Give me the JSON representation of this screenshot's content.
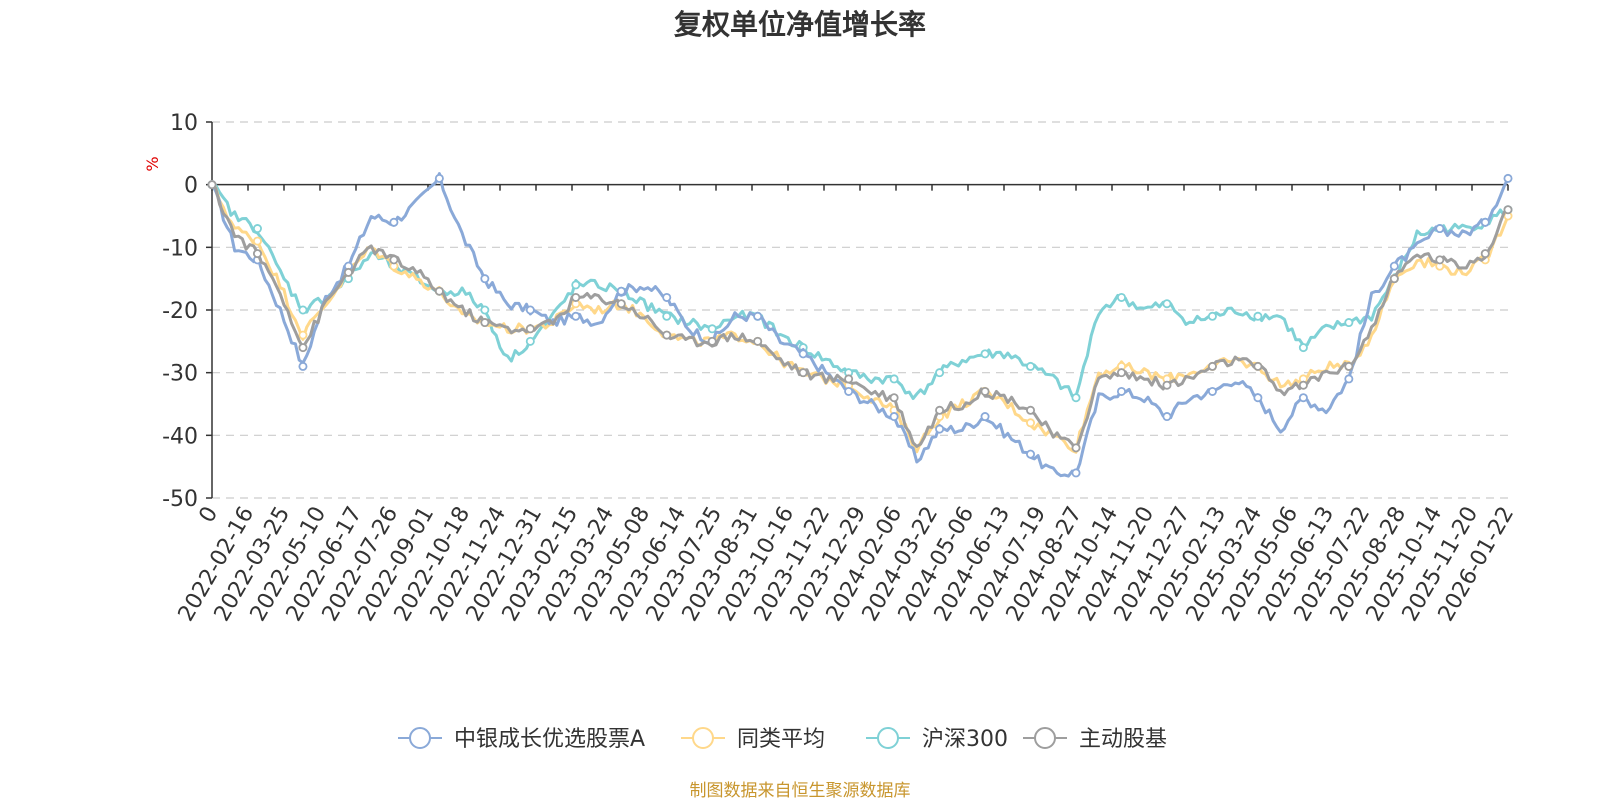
{
  "chart_data": {
    "type": "line",
    "title": "复权单位净值增长率",
    "y_unit": "%",
    "ylim": [
      -50,
      10
    ],
    "y_ticks": [
      10,
      0,
      -10,
      -20,
      -30,
      -40,
      -50
    ],
    "grid": true,
    "legend_position": "bottom-center",
    "x_tick_labels": [
      "0",
      "2022-02-16",
      "2022-03-25",
      "2022-05-10",
      "2022-06-17",
      "2022-07-26",
      "2022-09-01",
      "2022-10-18",
      "2022-11-24",
      "2022-12-31",
      "2023-02-15",
      "2023-03-24",
      "2023-05-08",
      "2023-06-14",
      "2023-07-25",
      "2023-08-31",
      "2023-10-16",
      "2023-11-22",
      "2023-12-29",
      "2024-02-06",
      "2024-03-22",
      "2024-05-06",
      "2024-06-13",
      "2024-07-19",
      "2024-08-27",
      "2024-10-14",
      "2024-11-20",
      "2024-12-27",
      "2025-02-13",
      "2025-03-24",
      "2025-05-06",
      "2025-06-13",
      "2025-07-22",
      "2025-08-28",
      "2025-10-14",
      "2025-11-20",
      "2026-01-22"
    ],
    "series": [
      {
        "name": "中银成长优选股票A",
        "color": "#8aa9d8",
        "values": [
          0,
          -10,
          -12,
          -20,
          -29,
          -18,
          -13,
          -5,
          -6,
          -3,
          1,
          -8,
          -15,
          -19,
          -20,
          -22,
          -21,
          -22,
          -17,
          -16,
          -18,
          -23,
          -25,
          -21,
          -21,
          -25,
          -27,
          -30,
          -33,
          -35,
          -37,
          -44,
          -39,
          -39,
          -37,
          -40,
          -43,
          -46,
          -46,
          -34,
          -33,
          -34,
          -37,
          -34,
          -33,
          -31,
          -34,
          -39,
          -34,
          -36,
          -31,
          -18,
          -13,
          -10,
          -7,
          -8,
          -6,
          1
        ]
      },
      {
        "name": "同类平均",
        "color": "#ffd88a",
        "values": [
          0,
          -7,
          -9,
          -16,
          -24,
          -19,
          -14,
          -10,
          -13,
          -15,
          -17,
          -21,
          -22,
          -23,
          -23,
          -22,
          -19,
          -20,
          -19,
          -21,
          -24,
          -25,
          -25,
          -24,
          -25,
          -28,
          -30,
          -31,
          -32,
          -34,
          -36,
          -42,
          -37,
          -35,
          -33,
          -35,
          -38,
          -40,
          -42,
          -30,
          -29,
          -30,
          -31,
          -30,
          -29,
          -28,
          -29,
          -32,
          -31,
          -29,
          -29,
          -24,
          -15,
          -12,
          -13,
          -14,
          -12,
          -5
        ]
      },
      {
        "name": "沪深300",
        "color": "#7fd1d6",
        "values": [
          0,
          -5,
          -7,
          -14,
          -20,
          -18,
          -15,
          -11,
          -13,
          -15,
          -17,
          -17,
          -20,
          -28,
          -25,
          -21,
          -16,
          -16,
          -17,
          -19,
          -21,
          -22,
          -23,
          -21,
          -21,
          -24,
          -26,
          -28,
          -30,
          -31,
          -31,
          -34,
          -30,
          -28,
          -27,
          -27,
          -29,
          -31,
          -34,
          -20,
          -18,
          -20,
          -19,
          -22,
          -21,
          -20,
          -21,
          -21,
          -26,
          -23,
          -22,
          -21,
          -15,
          -8,
          -7,
          -7,
          -6,
          -4
        ]
      },
      {
        "name": "主动股基",
        "color": "#9e9e9e",
        "values": [
          0,
          -8,
          -11,
          -17,
          -26,
          -19,
          -14,
          -10,
          -12,
          -14,
          -17,
          -20,
          -22,
          -23,
          -23,
          -22,
          -18,
          -18,
          -19,
          -21,
          -24,
          -25,
          -25,
          -24,
          -25,
          -28,
          -30,
          -31,
          -31,
          -33,
          -34,
          -42,
          -36,
          -35,
          -33,
          -34,
          -36,
          -40,
          -42,
          -31,
          -30,
          -31,
          -32,
          -31,
          -29,
          -28,
          -29,
          -33,
          -32,
          -30,
          -29,
          -23,
          -15,
          -11,
          -12,
          -13,
          -11,
          -4
        ]
      }
    ]
  },
  "footer": {
    "source": "制图数据来自恒生聚源数据库"
  }
}
